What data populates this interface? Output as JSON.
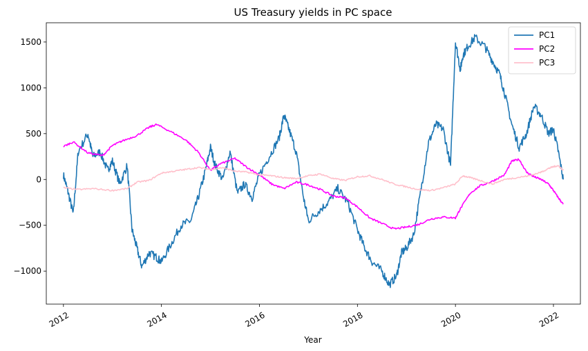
{
  "chart_data": {
    "type": "line",
    "title": "US Treasury yields in PC space",
    "xlabel": "Year",
    "ylabel": "",
    "xlim": [
      2011.65,
      2022.55
    ],
    "ylim": [
      -1360,
      1710
    ],
    "x_ticks": [
      2012,
      2014,
      2016,
      2018,
      2020,
      2022
    ],
    "x_tick_labels": [
      "2012",
      "2014",
      "2016",
      "2018",
      "2020",
      "2022"
    ],
    "y_ticks": [
      -1000,
      -500,
      0,
      500,
      1000,
      1500
    ],
    "y_tick_labels": [
      "−1000",
      "−500",
      "0",
      "500",
      "1000",
      "1500"
    ],
    "grid": false,
    "legend_position": "top-right",
    "series": [
      {
        "name": "PC1",
        "color": "#1f77b4",
        "x": [
          2012.0,
          2012.1,
          2012.2,
          2012.3,
          2012.5,
          2012.6,
          2012.75,
          2012.9,
          2013.0,
          2013.15,
          2013.3,
          2013.4,
          2013.5,
          2013.6,
          2013.75,
          2013.9,
          2014.0,
          2014.2,
          2014.4,
          2014.6,
          2014.75,
          2014.9,
          2015.0,
          2015.1,
          2015.25,
          2015.4,
          2015.55,
          2015.7,
          2015.85,
          2016.0,
          2016.2,
          2016.4,
          2016.5,
          2016.6,
          2016.75,
          2016.9,
          2017.0,
          2017.2,
          2017.4,
          2017.6,
          2017.8,
          2018.0,
          2018.15,
          2018.3,
          2018.5,
          2018.65,
          2018.8,
          2018.9,
          2019.0,
          2019.15,
          2019.3,
          2019.45,
          2019.6,
          2019.75,
          2019.9,
          2020.0,
          2020.1,
          2020.15,
          2020.25,
          2020.4,
          2020.6,
          2020.75,
          2020.9,
          2021.0,
          2021.15,
          2021.3,
          2021.45,
          2021.6,
          2021.75,
          2021.9,
          2022.0,
          2022.1,
          2022.2
        ],
        "y": [
          50,
          -150,
          -380,
          300,
          500,
          250,
          300,
          100,
          200,
          -50,
          150,
          -550,
          -750,
          -950,
          -800,
          -850,
          -900,
          -700,
          -500,
          -450,
          -200,
          100,
          350,
          150,
          0,
          300,
          -150,
          -50,
          -200,
          50,
          250,
          450,
          700,
          550,
          300,
          -200,
          -450,
          -350,
          -250,
          -100,
          -250,
          -550,
          -750,
          -900,
          -1000,
          -1150,
          -1050,
          -800,
          -750,
          -600,
          -100,
          400,
          600,
          550,
          150,
          1500,
          1200,
          1350,
          1450,
          1550,
          1450,
          1300,
          1150,
          950,
          600,
          350,
          500,
          800,
          700,
          500,
          550,
          300,
          0
        ]
      },
      {
        "name": "PC2",
        "color": "#ff00ff",
        "x": [
          2012.0,
          2012.2,
          2012.5,
          2012.8,
          2013.0,
          2013.2,
          2013.5,
          2013.75,
          2013.9,
          2014.2,
          2014.5,
          2014.75,
          2015.0,
          2015.2,
          2015.5,
          2015.75,
          2016.0,
          2016.25,
          2016.5,
          2016.75,
          2017.0,
          2017.25,
          2017.5,
          2017.75,
          2018.0,
          2018.25,
          2018.5,
          2018.75,
          2019.0,
          2019.25,
          2019.5,
          2019.75,
          2020.0,
          2020.1,
          2020.3,
          2020.5,
          2020.75,
          2021.0,
          2021.15,
          2021.3,
          2021.45,
          2021.6,
          2021.75,
          2021.9,
          2022.0,
          2022.1,
          2022.2
        ],
        "y": [
          360,
          410,
          290,
          260,
          370,
          420,
          480,
          570,
          600,
          520,
          430,
          300,
          100,
          170,
          230,
          130,
          50,
          -50,
          -100,
          -30,
          -60,
          -110,
          -180,
          -200,
          -300,
          -420,
          -480,
          -540,
          -520,
          -490,
          -430,
          -410,
          -420,
          -320,
          -150,
          -70,
          -20,
          50,
          200,
          220,
          80,
          30,
          0,
          -50,
          -120,
          -200,
          -270
        ]
      },
      {
        "name": "PC3",
        "color": "#ffc0cb",
        "x": [
          2012.0,
          2012.3,
          2012.6,
          2013.0,
          2013.3,
          2013.5,
          2013.75,
          2014.0,
          2014.25,
          2014.5,
          2014.75,
          2015.0,
          2015.25,
          2015.5,
          2015.75,
          2016.0,
          2016.25,
          2016.5,
          2016.75,
          2017.0,
          2017.25,
          2017.5,
          2017.75,
          2018.0,
          2018.25,
          2018.5,
          2018.75,
          2019.0,
          2019.25,
          2019.5,
          2019.75,
          2020.0,
          2020.15,
          2020.3,
          2020.5,
          2020.75,
          2021.0,
          2021.25,
          2021.5,
          2021.75,
          2021.9,
          2022.0,
          2022.1,
          2022.2
        ],
        "y": [
          -90,
          -110,
          -100,
          -120,
          -100,
          -30,
          -10,
          70,
          90,
          110,
          130,
          110,
          130,
          90,
          80,
          50,
          40,
          20,
          10,
          40,
          60,
          10,
          -10,
          30,
          40,
          0,
          -50,
          -80,
          -110,
          -120,
          -90,
          -50,
          40,
          20,
          -10,
          -50,
          0,
          20,
          40,
          80,
          120,
          140,
          150,
          100
        ]
      }
    ]
  }
}
